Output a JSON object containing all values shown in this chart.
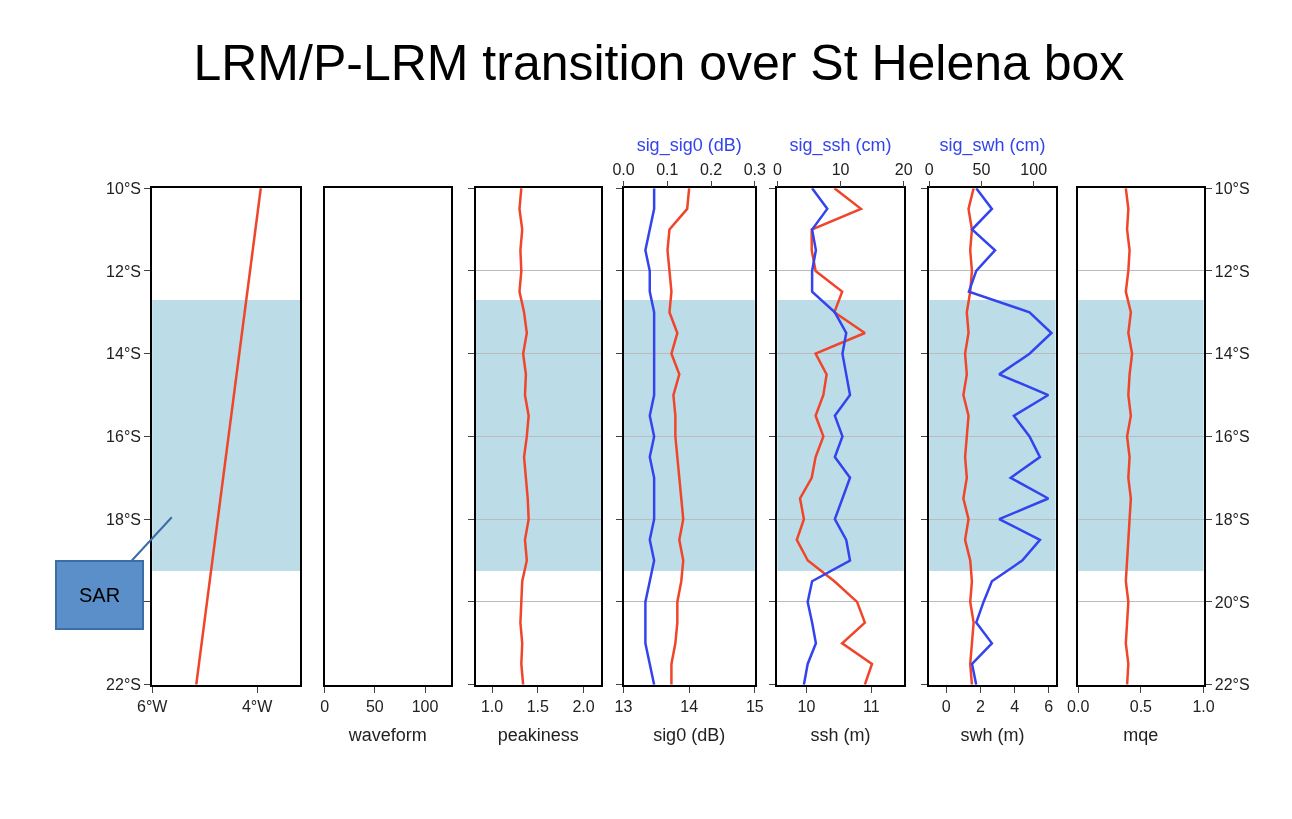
{
  "chart_data": [
    {
      "type": "line",
      "title": "LRM/P-LRM transition over St Helena box",
      "annotations": [
        "SAR"
      ],
      "xlim": [
        -6,
        -3.18
      ],
      "xticks": [
        {
          "value": -6,
          "label": "6°W"
        },
        {
          "value": -4,
          "label": "4°W"
        }
      ],
      "ylim": [
        -22,
        -10
      ],
      "yticks": [
        {
          "value": -22,
          "label": "22°S"
        },
        {
          "value": -20,
          "label": null
        },
        {
          "value": -18,
          "label": "18°S"
        },
        {
          "value": -16,
          "label": "16°S"
        },
        {
          "value": -14,
          "label": "14°S"
        },
        {
          "value": -12,
          "label": "12°S"
        },
        {
          "value": -10,
          "label": "10°S"
        }
      ],
      "bands": [
        {
          "axis": "y",
          "from": -12.7,
          "to": -19.25,
          "color": "#bcdde8"
        }
      ],
      "series": [
        {
          "color": "#f0452a",
          "x": [
            -5.16,
            -3.93
          ],
          "values": [
            -22,
            -10
          ]
        }
      ]
    },
    {
      "type": "other",
      "xlabel": "waveform",
      "annotations": [
        "0",
        "50",
        "100"
      ]
    },
    {
      "type": "line",
      "xlabel": "peakiness",
      "xlim": [
        0.82,
        2.19
      ],
      "xticks": [
        {
          "value": 1,
          "label": "1.0"
        },
        1.5,
        {
          "value": 2,
          "label": "2.0"
        }
      ],
      "ylim": [
        -22,
        -10
      ],
      "yticks": [
        {
          "value": -22,
          "label": null
        },
        {
          "value": -20,
          "label": null
        },
        {
          "value": -18,
          "label": null
        },
        {
          "value": -16,
          "label": null
        },
        {
          "value": -14,
          "label": null
        },
        {
          "value": -12,
          "label": null
        },
        {
          "value": -10,
          "label": null
        }
      ],
      "grid": "y",
      "tick_labels": "x",
      "bands": [
        {
          "axis": "y",
          "from": -12.7,
          "to": -19.25,
          "color": "#bcdde8"
        }
      ],
      "series": [
        {
          "color": "#f0452a",
          "x": [
            1.32,
            1.3,
            1.33,
            1.31,
            1.32,
            1.3,
            1.35,
            1.38,
            1.34,
            1.37,
            1.36,
            1.4,
            1.38,
            1.35,
            1.37,
            1.39,
            1.4,
            1.36,
            1.38,
            1.33,
            1.32,
            1.31,
            1.33,
            1.32,
            1.34
          ],
          "values": [
            -10,
            -10.5,
            -11,
            -11.5,
            -12,
            -12.5,
            -13,
            -13.5,
            -14,
            -14.5,
            -15,
            -15.5,
            -16,
            -16.5,
            -17,
            -17.5,
            -18,
            -18.5,
            -19,
            -19.5,
            -20,
            -20.5,
            -21,
            -21.5,
            -22
          ]
        }
      ]
    },
    {
      "type": "line",
      "xlabel": "sig0 (dB)",
      "x2label": "sig_sig0 (dB)",
      "xlim": [
        13,
        15
      ],
      "xticks": [
        13,
        14,
        15
      ],
      "x2lim": [
        0,
        0.3
      ],
      "x2ticks": [
        {
          "value": 0,
          "label": "0.0"
        },
        0.1,
        0.2,
        0.3
      ],
      "ylim": [
        -22,
        -10
      ],
      "yticks": [
        {
          "value": -22,
          "label": null
        },
        {
          "value": -20,
          "label": null
        },
        {
          "value": -18,
          "label": null
        },
        {
          "value": -16,
          "label": null
        },
        {
          "value": -14,
          "label": null
        },
        {
          "value": -12,
          "label": null
        },
        {
          "value": -10,
          "label": null
        }
      ],
      "grid": "y",
      "tick_labels": "x",
      "bands": [
        {
          "axis": "y",
          "from": -12.7,
          "to": -19.25,
          "color": "#bcdde8"
        }
      ],
      "series": [
        {
          "color": "#3344ee",
          "axis": "x2",
          "x": [
            0.07,
            0.07,
            0.06,
            0.05,
            0.06,
            0.06,
            0.07,
            0.07,
            0.07,
            0.07,
            0.07,
            0.06,
            0.07,
            0.06,
            0.07,
            0.07,
            0.07,
            0.06,
            0.07,
            0.06,
            0.05,
            0.05,
            0.05,
            0.06,
            0.07
          ],
          "values": [
            -10,
            -10.5,
            -11,
            -11.5,
            -12,
            -12.5,
            -13,
            -13.5,
            -14,
            -14.5,
            -15,
            -15.5,
            -16,
            -16.5,
            -17,
            -17.5,
            -18,
            -18.5,
            -19,
            -19.5,
            -20,
            -20.5,
            -21,
            -21.5,
            -22
          ]
        },
        {
          "color": "#f0452a",
          "x": [
            14.0,
            13.97,
            13.7,
            13.67,
            13.7,
            13.73,
            13.7,
            13.82,
            13.73,
            13.85,
            13.76,
            13.79,
            13.79,
            13.82,
            13.85,
            13.88,
            13.91,
            13.85,
            13.91,
            13.88,
            13.82,
            13.82,
            13.79,
            13.73,
            13.73
          ],
          "values": [
            -10,
            -10.5,
            -11,
            -11.5,
            -12,
            -12.5,
            -13,
            -13.5,
            -14,
            -14.5,
            -15,
            -15.5,
            -16,
            -16.5,
            -17,
            -17.5,
            -18,
            -18.5,
            -19,
            -19.5,
            -20,
            -20.5,
            -21,
            -21.5,
            -22
          ]
        }
      ]
    },
    {
      "type": "line",
      "xlabel": "ssh (m)",
      "x2label": "sig_ssh (cm)",
      "xlim": [
        9.55,
        11.5
      ],
      "xticks": [
        10,
        11
      ],
      "x2lim": [
        0,
        20
      ],
      "x2ticks": [
        0,
        10,
        20
      ],
      "ylim": [
        -22,
        -10
      ],
      "yticks": [
        {
          "value": -22,
          "label": null
        },
        {
          "value": -20,
          "label": null
        },
        {
          "value": -18,
          "label": null
        },
        {
          "value": -16,
          "label": null
        },
        {
          "value": -14,
          "label": null
        },
        {
          "value": -12,
          "label": null
        },
        {
          "value": -10,
          "label": null
        }
      ],
      "grid": "y",
      "tick_labels": "x",
      "bands": [
        {
          "axis": "y",
          "from": -12.7,
          "to": -19.25,
          "color": "#bcdde8"
        }
      ],
      "series": [
        {
          "color": "#3344ee",
          "axis": "x2",
          "x": [
            5.5,
            7.9,
            5.5,
            6.1,
            5.5,
            5.5,
            9.1,
            10.9,
            10.3,
            10.9,
            11.5,
            9.1,
            10.3,
            9.1,
            11.5,
            10.3,
            9.1,
            10.9,
            11.5,
            5.5,
            4.8,
            5.5,
            6.1,
            4.8,
            4.2
          ],
          "values": [
            -10,
            -10.5,
            -11,
            -11.5,
            -12,
            -12.5,
            -13,
            -13.5,
            -14,
            -14.5,
            -15,
            -15.5,
            -16,
            -16.5,
            -17,
            -17.5,
            -18,
            -18.5,
            -19,
            -19.5,
            -20,
            -20.5,
            -21,
            -21.5,
            -22
          ]
        },
        {
          "color": "#f0452a",
          "x": [
            10.43,
            10.84,
            10.08,
            10.08,
            10.14,
            10.55,
            10.43,
            10.9,
            10.14,
            10.31,
            10.26,
            10.14,
            10.26,
            10.14,
            10.08,
            9.9,
            9.96,
            9.85,
            10.02,
            10.43,
            10.78,
            10.9,
            10.55,
            11.01,
            10.9
          ],
          "values": [
            -10,
            -10.5,
            -11,
            -11.5,
            -12,
            -12.5,
            -13,
            -13.5,
            -14,
            -14.5,
            -15,
            -15.5,
            -16,
            -16.5,
            -17,
            -17.5,
            -18,
            -18.5,
            -19,
            -19.5,
            -20,
            -20.5,
            -21,
            -21.5,
            -22
          ]
        }
      ]
    },
    {
      "type": "line",
      "xlabel": "swh (m)",
      "x2label": "sig_swh (cm)",
      "xlim": [
        -1,
        6.4
      ],
      "xticks": [
        0,
        2,
        4,
        6
      ],
      "x2lim": [
        0,
        121
      ],
      "x2ticks": [
        0,
        50,
        100
      ],
      "ylim": [
        -22,
        -10
      ],
      "yticks": [
        {
          "value": -22,
          "label": null
        },
        {
          "value": -20,
          "label": null
        },
        {
          "value": -18,
          "label": null
        },
        {
          "value": -16,
          "label": null
        },
        {
          "value": -14,
          "label": null
        },
        {
          "value": -12,
          "label": null
        },
        {
          "value": -10,
          "label": null
        }
      ],
      "grid": "y",
      "tick_labels": "x",
      "bands": [
        {
          "axis": "y",
          "from": -12.7,
          "to": -19.25,
          "color": "#bcdde8"
        }
      ],
      "series": [
        {
          "color": "#f0452a",
          "x": [
            1.6,
            1.3,
            1.5,
            1.4,
            1.5,
            1.4,
            1.2,
            1.3,
            1.1,
            1.2,
            1.0,
            1.3,
            1.2,
            1.1,
            1.2,
            1.0,
            1.3,
            1.1,
            1.4,
            1.5,
            1.4,
            1.6,
            1.5,
            1.4,
            1.5
          ],
          "values": [
            -10,
            -10.5,
            -11,
            -11.5,
            -12,
            -12.5,
            -13,
            -13.5,
            -14,
            -14.5,
            -15,
            -15.5,
            -16,
            -16.5,
            -17,
            -17.5,
            -18,
            -18.5,
            -19,
            -19.5,
            -20,
            -20.5,
            -21,
            -21.5,
            -22
          ]
        },
        {
          "color": "#3344ee",
          "axis": "x2",
          "x": [
            45,
            60,
            41,
            63,
            45,
            38,
            96,
            117,
            96,
            67,
            114,
            81,
            96,
            106,
            78,
            114,
            67,
            106,
            89,
            60,
            52,
            45,
            60,
            41,
            45
          ],
          "values": [
            -10,
            -10.5,
            -11,
            -11.5,
            -12,
            -12.5,
            -13,
            -13.5,
            -14,
            -14.5,
            -15,
            -15.5,
            -16,
            -16.5,
            -17,
            -17.5,
            -18,
            -18.5,
            -19,
            -19.5,
            -20,
            -20.5,
            -21,
            -21.5,
            -22
          ]
        }
      ]
    },
    {
      "type": "line",
      "xlabel": "mqe",
      "xlim": [
        0,
        1
      ],
      "xticks": [
        {
          "value": 0,
          "label": "0.0"
        },
        0.5,
        {
          "value": 1,
          "label": "1.0"
        }
      ],
      "ylim": [
        -22,
        -10
      ],
      "yticks": [
        {
          "value": -22,
          "label": "22°S"
        },
        {
          "value": -20,
          "label": "20°S"
        },
        {
          "value": -18,
          "label": "18°S"
        },
        {
          "value": -16,
          "label": "16°S"
        },
        {
          "value": -14,
          "label": "14°S"
        },
        {
          "value": -12,
          "label": "12°S"
        },
        {
          "value": -10,
          "label": "10°S"
        }
      ],
      "grid": "y",
      "bands": [
        {
          "axis": "y",
          "from": -12.7,
          "to": -19.25,
          "color": "#bcdde8"
        }
      ],
      "series": [
        {
          "color": "#f0452a",
          "x": [
            0.38,
            0.4,
            0.39,
            0.41,
            0.4,
            0.38,
            0.42,
            0.4,
            0.43,
            0.41,
            0.4,
            0.42,
            0.39,
            0.41,
            0.4,
            0.42,
            0.41,
            0.4,
            0.39,
            0.38,
            0.4,
            0.39,
            0.38,
            0.4,
            0.39
          ],
          "values": [
            -10,
            -10.5,
            -11,
            -11.5,
            -12,
            -12.5,
            -13,
            -13.5,
            -14,
            -14.5,
            -15,
            -15.5,
            -16,
            -16.5,
            -17,
            -17.5,
            -18,
            -18.5,
            -19,
            -19.5,
            -20,
            -20.5,
            -21,
            -21.5,
            -22
          ]
        }
      ]
    }
  ]
}
